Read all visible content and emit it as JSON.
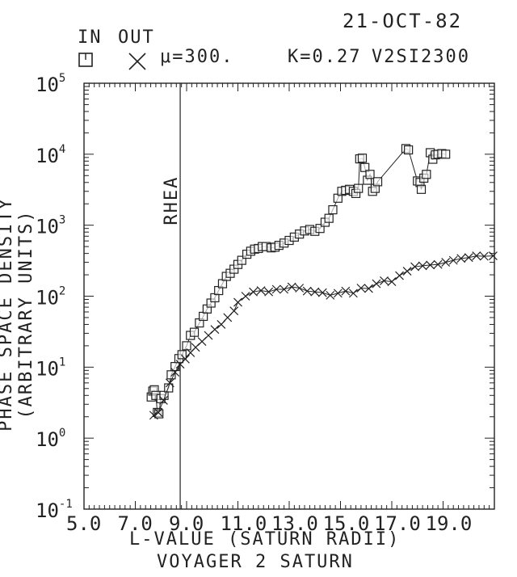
{
  "header": {
    "date": "21-OCT-82",
    "legend_in": "IN",
    "legend_out": "OUT",
    "mu": "μ=300.",
    "k": "K=0.27",
    "run_id": "V2SI2300"
  },
  "footer": "VOYAGER 2 SATURN",
  "colors": {
    "ink": "#222222",
    "background": "#ffffff"
  },
  "chart_data": {
    "type": "line",
    "title": "",
    "xlabel": "L-VALUE (SATURN RADII)",
    "ylabel": "PHASE SPACE DENSITY (ARBITRARY UNITS)",
    "xlim": [
      5.0,
      21.0
    ],
    "ylim": [
      0.1,
      100000
    ],
    "yscale": "log",
    "x_tick_labels": [
      "5.0",
      "7.0",
      "9.0",
      "11.0",
      "13.0",
      "15.0",
      "17.0",
      "19.0"
    ],
    "y_tick_labels": [
      {
        "base": "10",
        "exp": "-1"
      },
      {
        "base": "10",
        "exp": "0"
      },
      {
        "base": "10",
        "exp": "1"
      },
      {
        "base": "10",
        "exp": "2"
      },
      {
        "base": "10",
        "exp": "3"
      },
      {
        "base": "10",
        "exp": "4"
      },
      {
        "base": "10",
        "exp": "5"
      }
    ],
    "annotation": {
      "text": "RHEA",
      "x": 8.75
    },
    "series": [
      {
        "name": "IN",
        "marker": "square",
        "points": [
          [
            7.62,
            3.8
          ],
          [
            7.68,
            4.6
          ],
          [
            7.74,
            4.8
          ],
          [
            7.8,
            4.0
          ],
          [
            7.86,
            2.3
          ],
          [
            7.92,
            2.2
          ],
          [
            8.0,
            3.6
          ],
          [
            8.12,
            4.0
          ],
          [
            8.3,
            5.1
          ],
          [
            8.4,
            7.8
          ],
          [
            8.55,
            10.2
          ],
          [
            8.7,
            13.2
          ],
          [
            8.82,
            15.0
          ],
          [
            9.0,
            20.0
          ],
          [
            9.15,
            28.0
          ],
          [
            9.3,
            31.0
          ],
          [
            9.5,
            42.0
          ],
          [
            9.65,
            52.0
          ],
          [
            9.8,
            66.0
          ],
          [
            9.95,
            80.0
          ],
          [
            10.1,
            95.0
          ],
          [
            10.25,
            120.0
          ],
          [
            10.4,
            150.0
          ],
          [
            10.55,
            190.0
          ],
          [
            10.7,
            210.0
          ],
          [
            10.85,
            240.0
          ],
          [
            11.0,
            280.0
          ],
          [
            11.15,
            320.0
          ],
          [
            11.35,
            390.0
          ],
          [
            11.5,
            430.0
          ],
          [
            11.65,
            460.0
          ],
          [
            11.8,
            470.0
          ],
          [
            11.95,
            500.0
          ],
          [
            12.1,
            500.0
          ],
          [
            12.3,
            480.0
          ],
          [
            12.45,
            490.0
          ],
          [
            12.6,
            520.0
          ],
          [
            12.8,
            560.0
          ],
          [
            13.0,
            610.0
          ],
          [
            13.2,
            680.0
          ],
          [
            13.4,
            750.0
          ],
          [
            13.6,
            830.0
          ],
          [
            13.8,
            870.0
          ],
          [
            14.0,
            820.0
          ],
          [
            14.2,
            900.0
          ],
          [
            14.4,
            1100.0
          ],
          [
            14.55,
            1250.0
          ],
          [
            14.7,
            1650.0
          ],
          [
            14.9,
            2400.0
          ],
          [
            15.05,
            3000.0
          ],
          [
            15.2,
            3100.0
          ],
          [
            15.35,
            3200.0
          ],
          [
            15.5,
            3000.0
          ],
          [
            15.6,
            2800.0
          ],
          [
            15.7,
            3300.0
          ],
          [
            15.75,
            8600.0
          ],
          [
            15.85,
            8800.0
          ],
          [
            15.95,
            6500.0
          ],
          [
            16.05,
            4300.0
          ],
          [
            16.15,
            5200.0
          ],
          [
            16.25,
            3000.0
          ],
          [
            16.35,
            3300.0
          ],
          [
            16.45,
            4100.0
          ],
          [
            17.55,
            12000.0
          ],
          [
            17.65,
            11500.0
          ],
          [
            18.0,
            4200.0
          ],
          [
            18.1,
            4000.0
          ],
          [
            18.15,
            3200.0
          ],
          [
            18.25,
            4600.0
          ],
          [
            18.35,
            5200.0
          ],
          [
            18.5,
            10500.0
          ],
          [
            18.6,
            8500.0
          ],
          [
            18.7,
            9800.0
          ],
          [
            18.8,
            10000.0
          ],
          [
            18.95,
            10200.0
          ],
          [
            19.1,
            10000.0
          ]
        ]
      },
      {
        "name": "OUT",
        "marker": "x",
        "points": [
          [
            7.72,
            2.1
          ],
          [
            7.9,
            2.3
          ],
          [
            8.1,
            3.4
          ],
          [
            8.35,
            6.0
          ],
          [
            8.55,
            8.5
          ],
          [
            8.75,
            11.0
          ],
          [
            8.95,
            13.0
          ],
          [
            9.15,
            16.0
          ],
          [
            9.35,
            19.0
          ],
          [
            9.6,
            23.0
          ],
          [
            9.85,
            28.0
          ],
          [
            10.1,
            34.0
          ],
          [
            10.35,
            40.0
          ],
          [
            10.6,
            50.0
          ],
          [
            10.85,
            62.0
          ],
          [
            11.0,
            82.0
          ],
          [
            11.3,
            100.0
          ],
          [
            11.6,
            115.0
          ],
          [
            11.9,
            120.0
          ],
          [
            12.2,
            115.0
          ],
          [
            12.5,
            125.0
          ],
          [
            12.8,
            125.0
          ],
          [
            13.1,
            135.0
          ],
          [
            13.4,
            130.0
          ],
          [
            13.7,
            118.0
          ],
          [
            14.0,
            115.0
          ],
          [
            14.3,
            112.0
          ],
          [
            14.6,
            103.0
          ],
          [
            14.9,
            110.0
          ],
          [
            15.2,
            118.0
          ],
          [
            15.5,
            110.0
          ],
          [
            15.8,
            130.0
          ],
          [
            16.1,
            128.0
          ],
          [
            16.4,
            150.0
          ],
          [
            16.7,
            165.0
          ],
          [
            17.0,
            160.0
          ],
          [
            17.3,
            195.0
          ],
          [
            17.6,
            225.0
          ],
          [
            17.9,
            260.0
          ],
          [
            18.2,
            268.0
          ],
          [
            18.5,
            275.0
          ],
          [
            18.8,
            280.0
          ],
          [
            19.1,
            300.0
          ],
          [
            19.4,
            320.0
          ],
          [
            19.7,
            340.0
          ],
          [
            20.0,
            350.0
          ],
          [
            20.3,
            370.0
          ],
          [
            20.6,
            365.0
          ],
          [
            20.95,
            370.0
          ]
        ]
      }
    ]
  }
}
